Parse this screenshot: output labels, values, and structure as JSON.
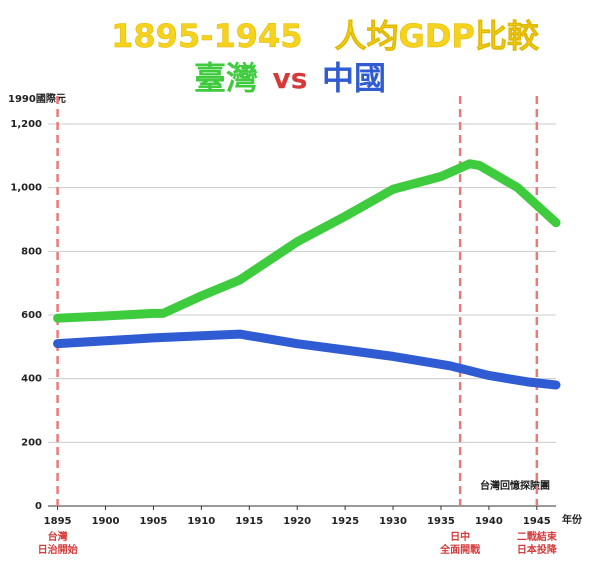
{
  "chart_data": {
    "type": "line",
    "title": "1895-1945　人均GDP比較",
    "subtitle_separator": "vs",
    "ylabel": "1990國際元",
    "xlabel": "年份",
    "watermark": "台灣回憶探險團",
    "xlim": [
      1894,
      1947
    ],
    "xticks": [
      1895,
      1900,
      1905,
      1910,
      1915,
      1920,
      1925,
      1930,
      1935,
      1940,
      1945
    ],
    "ylim": [
      0,
      1200
    ],
    "yticks": [
      0,
      200,
      400,
      600,
      800,
      {
        "value": 1000,
        "label": "1,000"
      },
      {
        "value": 1200,
        "label": "1,200"
      }
    ],
    "grid": true,
    "series": [
      {
        "name": "臺灣",
        "color": "#3ecb3e",
        "x": [
          1895,
          1900,
          1905,
          1906,
          1910,
          1914,
          1920,
          1925,
          1930,
          1935,
          1938,
          1939,
          1943,
          1947
        ],
        "values": [
          590,
          597,
          605,
          605,
          660,
          710,
          830,
          910,
          995,
          1035,
          1075,
          1070,
          1000,
          890
        ]
      },
      {
        "name": "中國",
        "color": "#2f5bd3",
        "x": [
          1895,
          1905,
          1914,
          1920,
          1925,
          1930,
          1936,
          1940,
          1944,
          1947
        ],
        "values": [
          510,
          528,
          540,
          510,
          490,
          470,
          440,
          410,
          390,
          380
        ]
      }
    ],
    "annotations": [
      {
        "x": 1895,
        "lines": [
          "台灣",
          "日治開始"
        ]
      },
      {
        "x": 1937,
        "lines": [
          "日中",
          "全面開戰"
        ]
      },
      {
        "x": 1945,
        "lines": [
          "二戰結束",
          "日本投降"
        ]
      }
    ]
  }
}
